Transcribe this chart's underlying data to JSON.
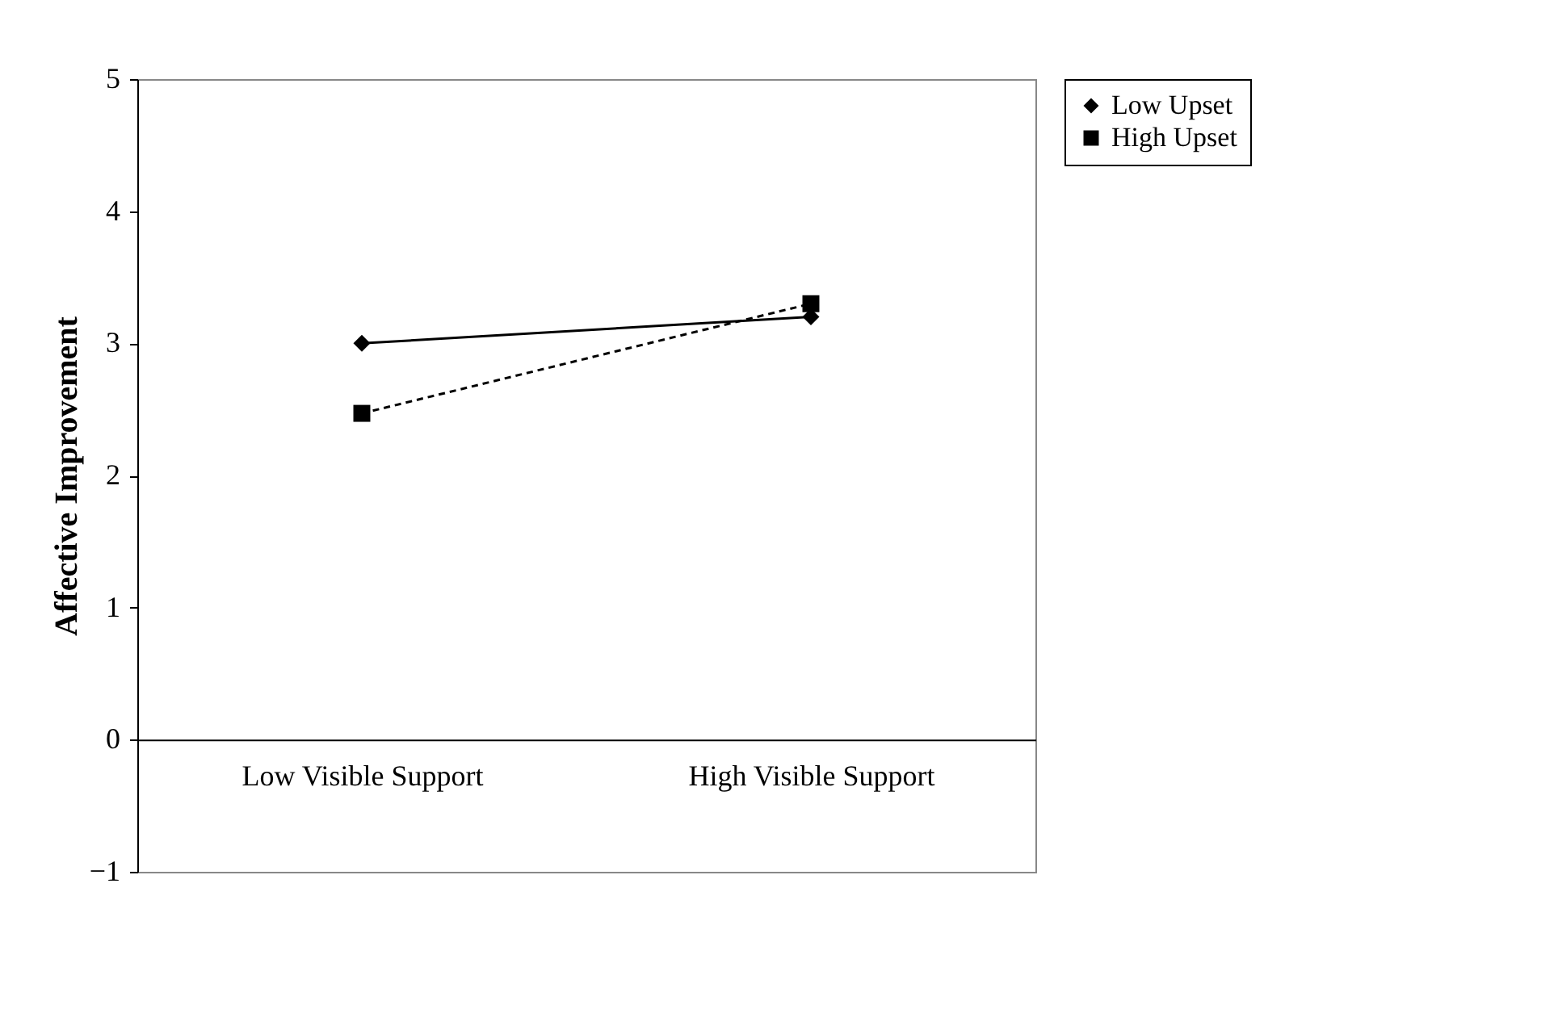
{
  "chart_data": {
    "type": "line",
    "ylabel": "Affective Improvement",
    "categories": [
      "Low Visible Support",
      "High Visible Support"
    ],
    "series": [
      {
        "name": "Low Upset",
        "color": "#000000",
        "values": [
          3.0,
          3.2
        ],
        "marker": "diamond",
        "line_style": "solid"
      },
      {
        "name": "High Upset",
        "color": "#000000",
        "values": [
          2.47,
          3.3
        ],
        "marker": "square",
        "line_style": "dashed"
      }
    ],
    "ylim": [
      -1,
      5
    ],
    "yticks": [
      -1,
      0,
      1,
      2,
      3,
      4,
      5
    ],
    "grid": false,
    "legend": "right"
  }
}
